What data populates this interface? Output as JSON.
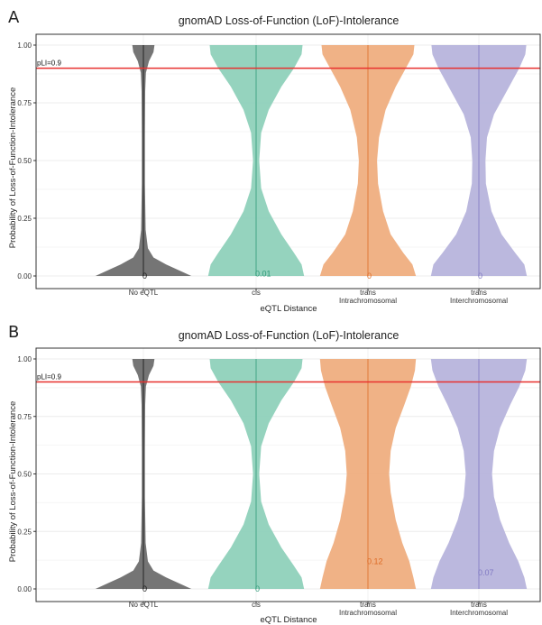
{
  "chart_data": [
    {
      "type": "violin",
      "panel_label": "A",
      "title": "gnomAD Loss-of-Function (LoF)-Intolerance",
      "xlabel": "eQTL Distance",
      "ylabel": "Probability of Loss-of-Function-Intolerance",
      "ylim": [
        0,
        1
      ],
      "yticks": [
        "0.00",
        "0.25",
        "0.50",
        "0.75",
        "1.00"
      ],
      "grid": true,
      "reference_line": {
        "value": 0.9,
        "label": "pLI=0.9",
        "color": "#e8312f"
      },
      "categories": [
        {
          "line1": "No eQTL",
          "line2": ""
        },
        {
          "line1": "cis",
          "line2": ""
        },
        {
          "line1": "trans",
          "line2": "Intrachromosomal"
        },
        {
          "line1": "trans",
          "line2": "Interchromosomal"
        }
      ],
      "series": [
        {
          "color": "#6e6e6e",
          "median": 0,
          "median_label": "0",
          "label_color": "#111111",
          "profile": [
            [
              0,
              0.95
            ],
            [
              0.02,
              0.75
            ],
            [
              0.05,
              0.45
            ],
            [
              0.08,
              0.2
            ],
            [
              0.12,
              0.09
            ],
            [
              0.2,
              0.045
            ],
            [
              0.4,
              0.03
            ],
            [
              0.6,
              0.03
            ],
            [
              0.8,
              0.035
            ],
            [
              0.88,
              0.05
            ],
            [
              0.93,
              0.11
            ],
            [
              0.97,
              0.2
            ],
            [
              1,
              0.22
            ]
          ]
        },
        {
          "color": "#8fd1bb",
          "median": 0.01,
          "median_label": "0.01",
          "label_color": "#2f9a78",
          "profile": [
            [
              0,
              0.95
            ],
            [
              0.05,
              0.9
            ],
            [
              0.1,
              0.75
            ],
            [
              0.18,
              0.5
            ],
            [
              0.28,
              0.25
            ],
            [
              0.38,
              0.1
            ],
            [
              0.5,
              0.06
            ],
            [
              0.62,
              0.1
            ],
            [
              0.72,
              0.25
            ],
            [
              0.82,
              0.5
            ],
            [
              0.9,
              0.75
            ],
            [
              0.96,
              0.9
            ],
            [
              1,
              0.92
            ]
          ]
        },
        {
          "color": "#efae80",
          "median": 0,
          "median_label": "0",
          "label_color": "#dd6a25",
          "profile": [
            [
              0,
              0.95
            ],
            [
              0.05,
              0.88
            ],
            [
              0.1,
              0.7
            ],
            [
              0.18,
              0.45
            ],
            [
              0.28,
              0.3
            ],
            [
              0.4,
              0.2
            ],
            [
              0.5,
              0.18
            ],
            [
              0.6,
              0.22
            ],
            [
              0.72,
              0.35
            ],
            [
              0.82,
              0.55
            ],
            [
              0.9,
              0.75
            ],
            [
              0.96,
              0.9
            ],
            [
              1,
              0.92
            ]
          ]
        },
        {
          "color": "#b7b4dc",
          "median": 0,
          "median_label": "0",
          "label_color": "#7f78c2",
          "profile": [
            [
              0,
              0.95
            ],
            [
              0.05,
              0.9
            ],
            [
              0.1,
              0.72
            ],
            [
              0.18,
              0.45
            ],
            [
              0.28,
              0.25
            ],
            [
              0.4,
              0.14
            ],
            [
              0.5,
              0.13
            ],
            [
              0.6,
              0.16
            ],
            [
              0.7,
              0.3
            ],
            [
              0.8,
              0.55
            ],
            [
              0.9,
              0.8
            ],
            [
              0.96,
              0.92
            ],
            [
              1,
              0.94
            ]
          ]
        }
      ]
    },
    {
      "type": "violin",
      "panel_label": "B",
      "title": "gnomAD Loss-of-Function (LoF)-Intolerance",
      "xlabel": "eQTL Distance",
      "ylabel": "Probability of Loss-of-Function-Intolerance",
      "ylim": [
        0,
        1
      ],
      "yticks": [
        "0.00",
        "0.25",
        "0.50",
        "0.75",
        "1.00"
      ],
      "grid": true,
      "reference_line": {
        "value": 0.9,
        "label": "pLI=0.9",
        "color": "#e8312f"
      },
      "categories": [
        {
          "line1": "No eQTL",
          "line2": ""
        },
        {
          "line1": "cis",
          "line2": ""
        },
        {
          "line1": "trans",
          "line2": "Intrachromosomal"
        },
        {
          "line1": "trans",
          "line2": "Interchromosomal"
        }
      ],
      "series": [
        {
          "color": "#6e6e6e",
          "median": 0,
          "median_label": "0",
          "label_color": "#111111",
          "profile": [
            [
              0,
              0.95
            ],
            [
              0.02,
              0.75
            ],
            [
              0.05,
              0.45
            ],
            [
              0.08,
              0.2
            ],
            [
              0.12,
              0.09
            ],
            [
              0.2,
              0.045
            ],
            [
              0.4,
              0.03
            ],
            [
              0.6,
              0.03
            ],
            [
              0.8,
              0.035
            ],
            [
              0.88,
              0.05
            ],
            [
              0.93,
              0.11
            ],
            [
              0.97,
              0.2
            ],
            [
              1,
              0.22
            ]
          ]
        },
        {
          "color": "#8fd1bb",
          "median": 0,
          "median_label": "0",
          "label_color": "#2f9a78",
          "profile": [
            [
              0,
              0.95
            ],
            [
              0.05,
              0.9
            ],
            [
              0.1,
              0.75
            ],
            [
              0.18,
              0.5
            ],
            [
              0.28,
              0.25
            ],
            [
              0.38,
              0.1
            ],
            [
              0.5,
              0.06
            ],
            [
              0.62,
              0.1
            ],
            [
              0.72,
              0.25
            ],
            [
              0.82,
              0.5
            ],
            [
              0.9,
              0.75
            ],
            [
              0.96,
              0.9
            ],
            [
              1,
              0.92
            ]
          ]
        },
        {
          "color": "#efae80",
          "median": 0.12,
          "median_label": "0.12",
          "label_color": "#dd6a25",
          "profile": [
            [
              0,
              0.95
            ],
            [
              0.05,
              0.9
            ],
            [
              0.12,
              0.82
            ],
            [
              0.2,
              0.68
            ],
            [
              0.3,
              0.55
            ],
            [
              0.42,
              0.45
            ],
            [
              0.5,
              0.42
            ],
            [
              0.6,
              0.45
            ],
            [
              0.7,
              0.55
            ],
            [
              0.8,
              0.72
            ],
            [
              0.88,
              0.85
            ],
            [
              0.95,
              0.93
            ],
            [
              1,
              0.95
            ]
          ]
        },
        {
          "color": "#b7b4dc",
          "median": 0.07,
          "median_label": "0.07",
          "label_color": "#7f78c2",
          "profile": [
            [
              0,
              0.95
            ],
            [
              0.05,
              0.9
            ],
            [
              0.12,
              0.78
            ],
            [
              0.2,
              0.6
            ],
            [
              0.3,
              0.42
            ],
            [
              0.4,
              0.3
            ],
            [
              0.5,
              0.26
            ],
            [
              0.6,
              0.3
            ],
            [
              0.7,
              0.42
            ],
            [
              0.8,
              0.62
            ],
            [
              0.88,
              0.8
            ],
            [
              0.95,
              0.92
            ],
            [
              1,
              0.95
            ]
          ]
        }
      ]
    }
  ]
}
